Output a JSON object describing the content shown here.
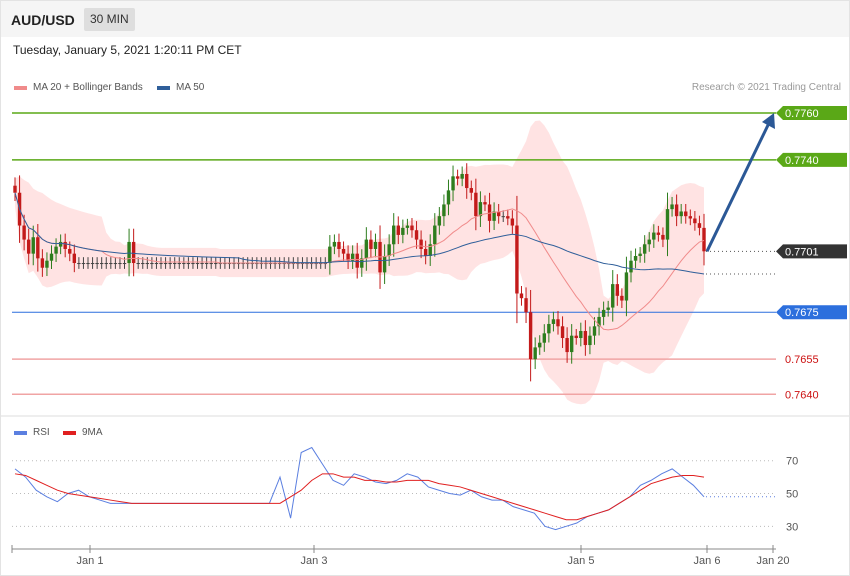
{
  "header": {
    "symbol": "AUD/USD",
    "timeframe": "30 MIN",
    "datetime": "Tuesday, January 5, 2021 1:20:11 PM CET",
    "copyright": "Research © 2021 Trading Central"
  },
  "colors": {
    "ma20": "#f08b8b",
    "bollinger_fill": "#ffdada",
    "ma50": "#2f5f9a",
    "resistance": "#5aa817",
    "current": "#333333",
    "pivot": "#2c6fdd",
    "support": "#cc1111",
    "support_line": "#f0a4a4",
    "candle_up": "#2e7d1e",
    "candle_down": "#c31a1a",
    "rsi": "#5b7fe0",
    "rsi_ma": "#e02020",
    "arrow": "#2b5896"
  },
  "chart_data": [
    {
      "type": "candlestick",
      "title": "",
      "legend": [
        {
          "name": "MA 20 + Bollinger Bands",
          "color": "#f08b8b"
        },
        {
          "name": "MA 50",
          "color": "#2f5f9a"
        }
      ],
      "x_ticks": [
        "Jan 1",
        "Jan 3",
        "Jan 5",
        "Jan 6",
        "Jan 20"
      ],
      "ylim": [
        0.7632,
        0.7766
      ],
      "levels": [
        {
          "value": 0.776,
          "label": "0.7760",
          "role": "resistance"
        },
        {
          "value": 0.774,
          "label": "0.7740",
          "role": "resistance"
        },
        {
          "value": 0.7701,
          "label": "0.7701",
          "role": "current"
        },
        {
          "value": 0.7675,
          "label": "0.7675",
          "role": "pivot"
        },
        {
          "value": 0.7655,
          "label": "0.7655",
          "role": "support"
        },
        {
          "value": 0.764,
          "label": "0.7640",
          "role": "support"
        }
      ],
      "forecast": {
        "from": 0.7701,
        "to": 0.776,
        "direction": "up"
      },
      "close_series": [
        0.7726,
        0.7712,
        0.7706,
        0.77,
        0.7707,
        0.7698,
        0.7694,
        0.7697,
        0.77,
        0.7703,
        0.7705,
        0.7702,
        0.77,
        0.7696,
        0.7696,
        0.7696,
        0.7696,
        0.7696,
        0.7696,
        0.7696,
        0.7696,
        0.7696,
        0.7696,
        0.7696,
        0.7696,
        0.7705,
        0.7696,
        0.7696,
        0.7696,
        0.7696,
        0.7696,
        0.7696,
        0.7696,
        0.7696,
        0.7696,
        0.7696,
        0.7696,
        0.7696,
        0.7696,
        0.7696,
        0.7696,
        0.7696,
        0.7696,
        0.7696,
        0.7696,
        0.7696,
        0.7696,
        0.7696,
        0.7696,
        0.7696,
        0.7696,
        0.7696,
        0.7696,
        0.7696,
        0.7696,
        0.7696,
        0.7696,
        0.7696,
        0.7696,
        0.7696,
        0.7696,
        0.7696,
        0.7696,
        0.7696,
        0.7696,
        0.7696,
        0.7696,
        0.7696,
        0.7696,
        0.7703,
        0.7705,
        0.7702,
        0.77,
        0.7697,
        0.77,
        0.7694,
        0.7698,
        0.7706,
        0.7702,
        0.7705,
        0.7692,
        0.7699,
        0.7704,
        0.7712,
        0.7708,
        0.7711,
        0.7712,
        0.771,
        0.7706,
        0.7702,
        0.7699,
        0.7704,
        0.7712,
        0.7716,
        0.7721,
        0.7727,
        0.7733,
        0.7732,
        0.7734,
        0.7728,
        0.7726,
        0.7716,
        0.7722,
        0.7721,
        0.7714,
        0.7718,
        0.7716,
        0.7716,
        0.7715,
        0.7712,
        0.7683,
        0.7681,
        0.7675,
        0.7655,
        0.766,
        0.7662,
        0.7666,
        0.767,
        0.7672,
        0.7669,
        0.7664,
        0.7658,
        0.7665,
        0.7664,
        0.7667,
        0.7661,
        0.7665,
        0.7669,
        0.7673,
        0.7676,
        0.7677,
        0.7687,
        0.7682,
        0.768,
        0.7692,
        0.7697,
        0.7699,
        0.77,
        0.7704,
        0.7706,
        0.7709,
        0.7708,
        0.7706,
        0.7719,
        0.7721,
        0.7716,
        0.7718,
        0.7716,
        0.7715,
        0.7713,
        0.7711,
        0.7701
      ]
    },
    {
      "type": "line",
      "title": "",
      "legend": [
        {
          "name": "RSI",
          "color": "#5b7fe0"
        },
        {
          "name": "9MA",
          "color": "#e02020"
        }
      ],
      "ylim": [
        18,
        82
      ],
      "y_ticks": [
        70,
        50,
        30
      ],
      "series": [
        {
          "name": "RSI",
          "values": [
            65,
            60,
            52,
            48,
            45,
            50,
            52,
            48,
            46,
            44,
            44,
            44,
            44,
            44,
            44,
            44,
            44,
            44,
            44,
            44,
            44,
            44,
            44,
            44,
            44,
            60,
            35,
            75,
            78,
            68,
            58,
            55,
            62,
            60,
            57,
            56,
            58,
            62,
            60,
            54,
            52,
            50,
            49,
            52,
            48,
            46,
            46,
            42,
            40,
            38,
            30,
            28,
            30,
            32,
            36,
            38,
            40,
            44,
            48,
            55,
            58,
            62,
            65,
            60,
            55,
            48
          ]
        },
        {
          "name": "9MA",
          "values": [
            62,
            61,
            58,
            55,
            52,
            50,
            49,
            48,
            47,
            46,
            45,
            44,
            44,
            44,
            44,
            44,
            44,
            44,
            44,
            44,
            44,
            44,
            44,
            44,
            44,
            44,
            48,
            52,
            58,
            62,
            62,
            60,
            60,
            58,
            58,
            57,
            57,
            58,
            58,
            58,
            56,
            55,
            54,
            52,
            50,
            48,
            46,
            44,
            42,
            40,
            38,
            36,
            34,
            34,
            36,
            38,
            40,
            44,
            48,
            52,
            56,
            58,
            60,
            61,
            61,
            60
          ]
        }
      ]
    }
  ]
}
